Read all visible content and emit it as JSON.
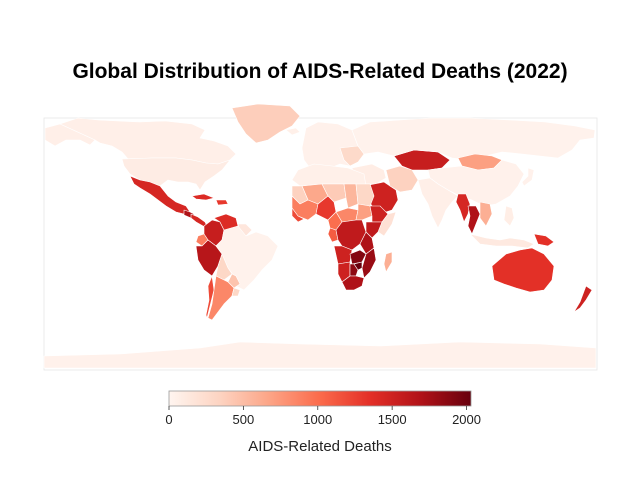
{
  "title": "Global Distribution of AIDS-Related Deaths (2022)",
  "colorbar": {
    "label": "AIDS-Related Deaths",
    "min": 0,
    "max": 2030,
    "ticks": [
      0,
      500,
      1000,
      1500,
      2000
    ],
    "colorscale": [
      "#fff5f0",
      "#fdd4c2",
      "#fca486",
      "#fb6b4b",
      "#e32f27",
      "#b11218",
      "#67000d"
    ]
  },
  "colors": {
    "land_border": "#cccccc",
    "country_edge": "#ffffff"
  },
  "regions": [
    {
      "name": "Canada",
      "value": 60
    },
    {
      "name": "Alaska",
      "value": 60
    },
    {
      "name": "United States",
      "value": 90
    },
    {
      "name": "Greenland",
      "value": 380
    },
    {
      "name": "Mexico",
      "value": 1450
    },
    {
      "name": "Guatemala",
      "value": 1700
    },
    {
      "name": "Central America",
      "value": 1450
    },
    {
      "name": "Cuba",
      "value": 1400
    },
    {
      "name": "Caribbean islands",
      "value": 1300
    },
    {
      "name": "Colombia",
      "value": 1550
    },
    {
      "name": "Venezuela",
      "value": 1400
    },
    {
      "name": "Guianas",
      "value": 150
    },
    {
      "name": "Ecuador",
      "value": 900
    },
    {
      "name": "Peru",
      "value": 1650
    },
    {
      "name": "Brazil",
      "value": 30
    },
    {
      "name": "Bolivia",
      "value": 300
    },
    {
      "name": "Paraguay",
      "value": 450
    },
    {
      "name": "Chile",
      "value": 1200
    },
    {
      "name": "Argentina",
      "value": 850
    },
    {
      "name": "Uruguay",
      "value": 300
    },
    {
      "name": "Iceland",
      "value": 50
    },
    {
      "name": "Europe",
      "value": 40
    },
    {
      "name": "Eastern Europe",
      "value": 280
    },
    {
      "name": "Kazakhstan",
      "value": 1550
    },
    {
      "name": "Russia",
      "value": 30
    },
    {
      "name": "Mongolia",
      "value": 700
    },
    {
      "name": "China",
      "value": 40
    },
    {
      "name": "Japan",
      "value": 40
    },
    {
      "name": "Middle East",
      "value": 80
    },
    {
      "name": "Saudi Arabia",
      "value": 1500
    },
    {
      "name": "Iran",
      "value": 350
    },
    {
      "name": "India",
      "value": 60
    },
    {
      "name": "Myanmar",
      "value": 1450
    },
    {
      "name": "Thailand",
      "value": 1700
    },
    {
      "name": "Vietnam",
      "value": 600
    },
    {
      "name": "Indonesia",
      "value": 120
    },
    {
      "name": "Papua New Guinea",
      "value": 1350
    },
    {
      "name": "Philippines",
      "value": 70
    },
    {
      "name": "North Africa",
      "value": 50
    },
    {
      "name": "Mali",
      "value": 650
    },
    {
      "name": "Niger",
      "value": 400
    },
    {
      "name": "Chad",
      "value": 550
    },
    {
      "name": "Sudan",
      "value": 300
    },
    {
      "name": "Mauritania",
      "value": 350
    },
    {
      "name": "West Africa",
      "value": 900
    },
    {
      "name": "Guinea",
      "value": 1200
    },
    {
      "name": "Nigeria",
      "value": 1300
    },
    {
      "name": "Central African Republic",
      "value": 850
    },
    {
      "name": "South Sudan",
      "value": 700
    },
    {
      "name": "Ethiopia",
      "value": 1500
    },
    {
      "name": "Somalia",
      "value": 200
    },
    {
      "name": "Kenya",
      "value": 1600
    },
    {
      "name": "Cameroon",
      "value": 1000
    },
    {
      "name": "Gabon",
      "value": 1100
    },
    {
      "name": "DR Congo",
      "value": 1600
    },
    {
      "name": "Tanzania",
      "value": 1700
    },
    {
      "name": "Angola",
      "value": 1500
    },
    {
      "name": "Zambia",
      "value": 1900
    },
    {
      "name": "Mozambique",
      "value": 1800
    },
    {
      "name": "Namibia",
      "value": 1500
    },
    {
      "name": "Botswana",
      "value": 1850
    },
    {
      "name": "Zimbabwe",
      "value": 2030
    },
    {
      "name": "South Africa",
      "value": 1700
    },
    {
      "name": "Madagascar",
      "value": 600
    },
    {
      "name": "Australia",
      "value": 1350
    },
    {
      "name": "New Zealand",
      "value": 1500
    },
    {
      "name": "Antarctica",
      "value": 40
    }
  ]
}
